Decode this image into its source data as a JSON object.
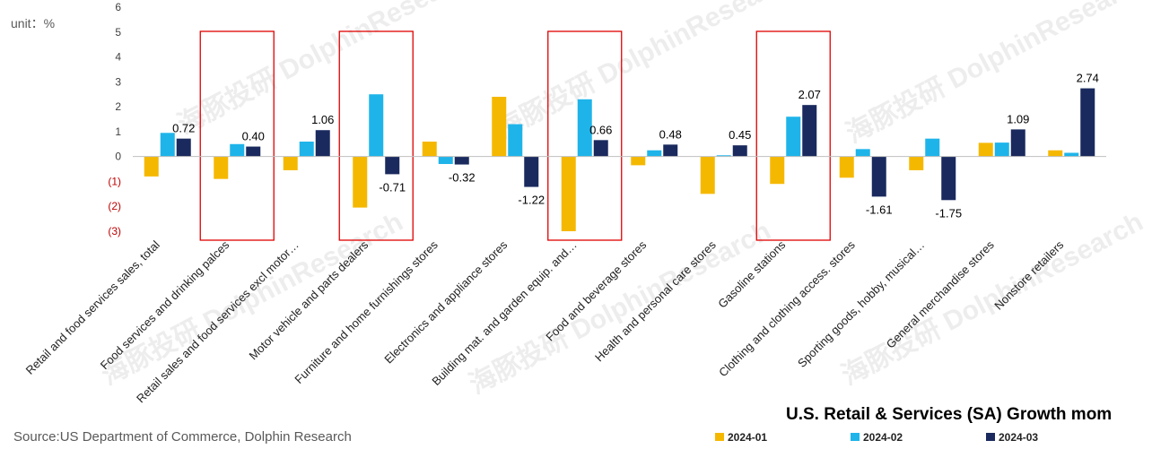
{
  "chart_data": {
    "type": "bar",
    "title": "U.S. Retail & Services (SA) Growth mom",
    "unit_label": "unit：%",
    "source": "Source:US Department of Commerce, Dolphin Research",
    "watermark": "海豚投研 DolphinResearch",
    "ylim": [
      -3,
      6
    ],
    "yticks": [
      {
        "v": 6,
        "label": "6",
        "neg": false
      },
      {
        "v": 5,
        "label": "5",
        "neg": false
      },
      {
        "v": 4,
        "label": "4",
        "neg": false
      },
      {
        "v": 3,
        "label": "3",
        "neg": false
      },
      {
        "v": 2,
        "label": "2",
        "neg": false
      },
      {
        "v": 1,
        "label": "1",
        "neg": false
      },
      {
        "v": 0,
        "label": "0",
        "neg": false
      },
      {
        "v": -1,
        "label": "(1)",
        "neg": true
      },
      {
        "v": -2,
        "label": "(2)",
        "neg": true
      },
      {
        "v": -3,
        "label": "(3)",
        "neg": true
      }
    ],
    "categories": [
      "Retail and food services sales, total",
      "Food services and drinking palces",
      "Retail sales and food services excl motor…",
      "Motor vehicle and parts dealers",
      "Furniture and home furnishings stores",
      "Electronics and appliance stores",
      "Building mat. and garden equip. and…",
      "Food and beverage stores",
      "Health and personal care stores",
      "Gasoline stations",
      "Clothing and clothing access. stores",
      "Sporting goods, hobby, musical…",
      "General merchandise stores",
      "Nonstore retailers"
    ],
    "series": [
      {
        "name": "2024-01",
        "color": "#F5B800",
        "values": [
          -0.8,
          -0.9,
          -0.55,
          -2.05,
          0.6,
          2.4,
          -3.0,
          -0.35,
          -1.5,
          -1.1,
          -0.85,
          -0.55,
          0.55,
          0.25
        ]
      },
      {
        "name": "2024-02",
        "color": "#1EB4EA",
        "values": [
          0.95,
          0.5,
          0.6,
          2.5,
          -0.3,
          1.3,
          2.3,
          0.25,
          0.05,
          1.6,
          0.3,
          0.72,
          0.56,
          0.15
        ]
      },
      {
        "name": "2024-03",
        "color": "#1A2A5E",
        "values": [
          0.72,
          0.4,
          1.06,
          -0.71,
          -0.32,
          -1.22,
          0.66,
          0.48,
          0.45,
          2.07,
          -1.61,
          -1.75,
          1.09,
          2.74
        ]
      }
    ],
    "data_labels": [
      "0.72",
      "0.40",
      "1.06",
      "-0.71",
      "-0.32",
      "-1.22",
      "0.66",
      "0.48",
      "0.45",
      "2.07",
      "-1.61",
      "-1.75",
      "1.09",
      "2.74"
    ],
    "highlighted_categories": [
      1,
      3,
      6,
      9
    ],
    "legend_position": "bottom-right"
  }
}
